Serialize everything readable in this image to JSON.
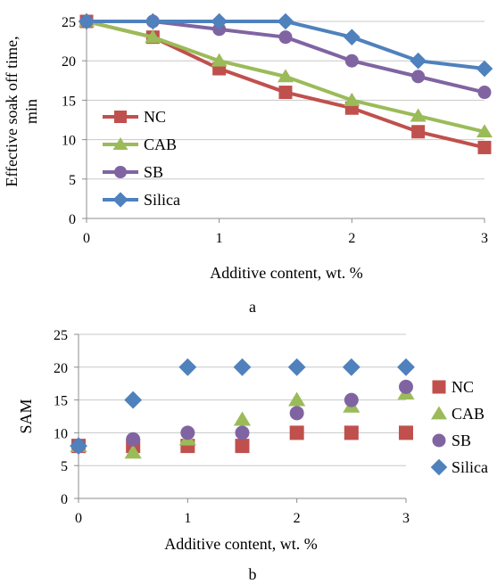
{
  "chart_data": [
    {
      "type": "line",
      "panel_label": "a",
      "xlabel": "Additive content, wt. %",
      "ylabel": "Effective soak off time, min",
      "xlim": [
        0,
        3
      ],
      "ylim": [
        0,
        25
      ],
      "xticks": [
        "0",
        "1",
        "2",
        "3"
      ],
      "yticks": [
        "0",
        "5",
        "10",
        "15",
        "20",
        "25"
      ],
      "grid": "horizontal",
      "legend": "left",
      "x": [
        0,
        0.5,
        1,
        1.5,
        2,
        2.5,
        3
      ],
      "series": [
        {
          "name": "NC",
          "marker": "square",
          "color": "#c0504d",
          "values": [
            25,
            23,
            19,
            16,
            14,
            11,
            9
          ]
        },
        {
          "name": "CAB",
          "marker": "triangle",
          "color": "#9bbb59",
          "values": [
            25,
            23,
            20,
            18,
            15,
            13,
            11
          ]
        },
        {
          "name": "SB",
          "marker": "circle",
          "color": "#8064a2",
          "values": [
            25,
            25,
            24,
            23,
            20,
            18,
            16
          ]
        },
        {
          "name": "Silica",
          "marker": "diamond",
          "color": "#4f81bd",
          "values": [
            25,
            25,
            25,
            25,
            23,
            20,
            19
          ]
        }
      ]
    },
    {
      "type": "scatter",
      "panel_label": "b",
      "xlabel": "Additive content, wt. %",
      "ylabel": "SAM",
      "xlim": [
        0,
        3
      ],
      "ylim": [
        0,
        25
      ],
      "xticks": [
        "0",
        "1",
        "2",
        "3"
      ],
      "yticks": [
        "0",
        "5",
        "10",
        "15",
        "20",
        "25"
      ],
      "grid": "horizontal",
      "legend": "right",
      "x": [
        0,
        0.5,
        1,
        1.5,
        2,
        2.5,
        3
      ],
      "series": [
        {
          "name": "NC",
          "marker": "square",
          "color": "#c0504d",
          "values": [
            8,
            8,
            8,
            8,
            10,
            10,
            10
          ]
        },
        {
          "name": "CAB",
          "marker": "triangle",
          "color": "#9bbb59",
          "values": [
            8,
            7,
            9,
            12,
            15,
            14,
            16
          ]
        },
        {
          "name": "SB",
          "marker": "circle",
          "color": "#8064a2",
          "values": [
            8,
            9,
            10,
            10,
            13,
            15,
            17
          ]
        },
        {
          "name": "Silica",
          "marker": "diamond",
          "color": "#4f81bd",
          "values": [
            8,
            15,
            20,
            20,
            20,
            20,
            20
          ]
        }
      ]
    }
  ]
}
